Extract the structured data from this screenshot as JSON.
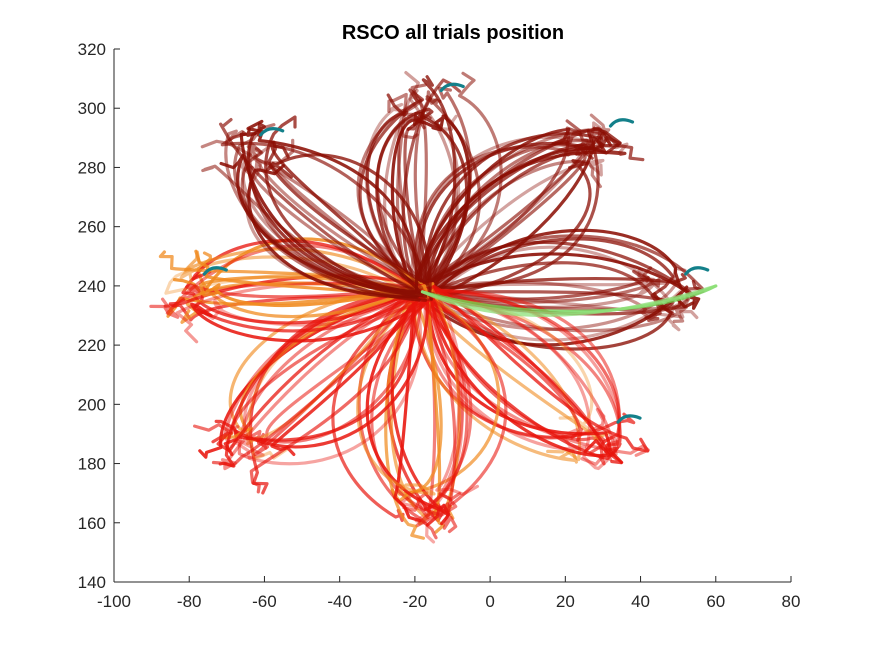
{
  "chart_data": {
    "type": "line",
    "title": "RSCO all trials position",
    "xlabel": "",
    "ylabel": "",
    "xlim": [
      -100,
      80
    ],
    "ylim": [
      140,
      320
    ],
    "xticks": [
      "-100",
      "-80",
      "-60",
      "-40",
      "-20",
      "0",
      "20",
      "40",
      "60",
      "80"
    ],
    "yticks": [
      "140",
      "160",
      "180",
      "200",
      "220",
      "240",
      "260",
      "280",
      "300",
      "320"
    ],
    "grid": false,
    "legend": "none",
    "center": [
      -18,
      238
    ],
    "colors": {
      "dark_red": "#8b0e04",
      "red": "#e8140c",
      "orange": "#f08a1e",
      "light_green": "#8fe07a",
      "green": "#6ad250",
      "teal": "#13808a"
    },
    "targets": [
      {
        "direction": "up",
        "x": -17,
        "y": 300,
        "color": "dark_red"
      },
      {
        "direction": "upper-right",
        "x": 28,
        "y": 288,
        "color": "dark_red"
      },
      {
        "direction": "right",
        "x": 48,
        "y": 238,
        "color": "dark_red"
      },
      {
        "direction": "lower-right",
        "x": 30,
        "y": 188,
        "color": "red"
      },
      {
        "direction": "down",
        "x": -18,
        "y": 165,
        "color": "red"
      },
      {
        "direction": "lower-left",
        "x": -65,
        "y": 185,
        "color": "red"
      },
      {
        "direction": "left",
        "x": -80,
        "y": 238,
        "color": "red"
      },
      {
        "direction": "upper-left",
        "x": -65,
        "y": 285,
        "color": "dark_red"
      }
    ]
  }
}
